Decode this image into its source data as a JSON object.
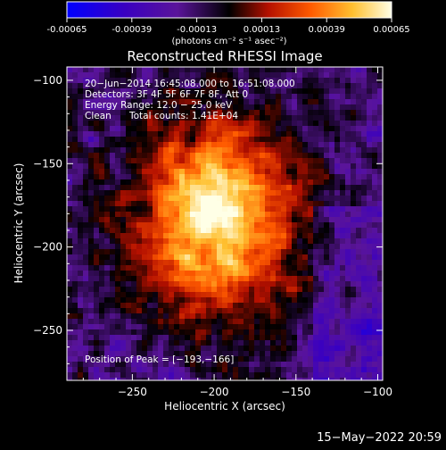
{
  "colorbar": {
    "tick_labels": [
      "-0.00065",
      "-0.00039",
      "-0.00013",
      "0.00013",
      "0.00039",
      "0.00065"
    ],
    "tick_values": [
      -0.00065,
      -0.00039,
      -0.00013,
      0.00013,
      0.00039,
      0.00065
    ],
    "range": [
      -0.00065,
      0.00065
    ],
    "units_label": "(photons cm⁻² s⁻¹ asec⁻²)",
    "colormap": [
      "#0000ff",
      "#3a00c0",
      "#5a149a",
      "#000000",
      "#b41000",
      "#ff5a00",
      "#ffc030",
      "#ffffe6"
    ]
  },
  "chart_data": {
    "type": "heatmap",
    "title": "Reconstructed RHESSI Image",
    "xlabel": "Heliocentric X (arcsec)",
    "ylabel": "Heliocentric Y (arcsec)",
    "xlim": [
      -290,
      -97
    ],
    "ylim": [
      -280,
      -92
    ],
    "x_ticks": [
      -250,
      -200,
      -150,
      -100
    ],
    "y_ticks": [
      -100,
      -150,
      -200,
      -250
    ],
    "x_tick_labels": [
      "−250",
      "−200",
      "−150",
      "−100"
    ],
    "y_tick_labels": [
      "−100",
      "−150",
      "−200",
      "−250"
    ],
    "peak_position": [
      -193,
      -166
    ],
    "annotations": {
      "time_range": "20−Jun−2014 16:45:08.000 to 16:51:08.000",
      "detectors": "Detectors: 3F 4F 5F 6F 7F 8F, Att 0",
      "energy": "Energy Range: 12.0 − 25.0 keV",
      "algorithm": "Clean",
      "total_counts": "Total counts: 1.41E+04",
      "peak": "Position of Peak = [−193,−166]"
    }
  },
  "timestamp": "15−May−2022 20:59"
}
